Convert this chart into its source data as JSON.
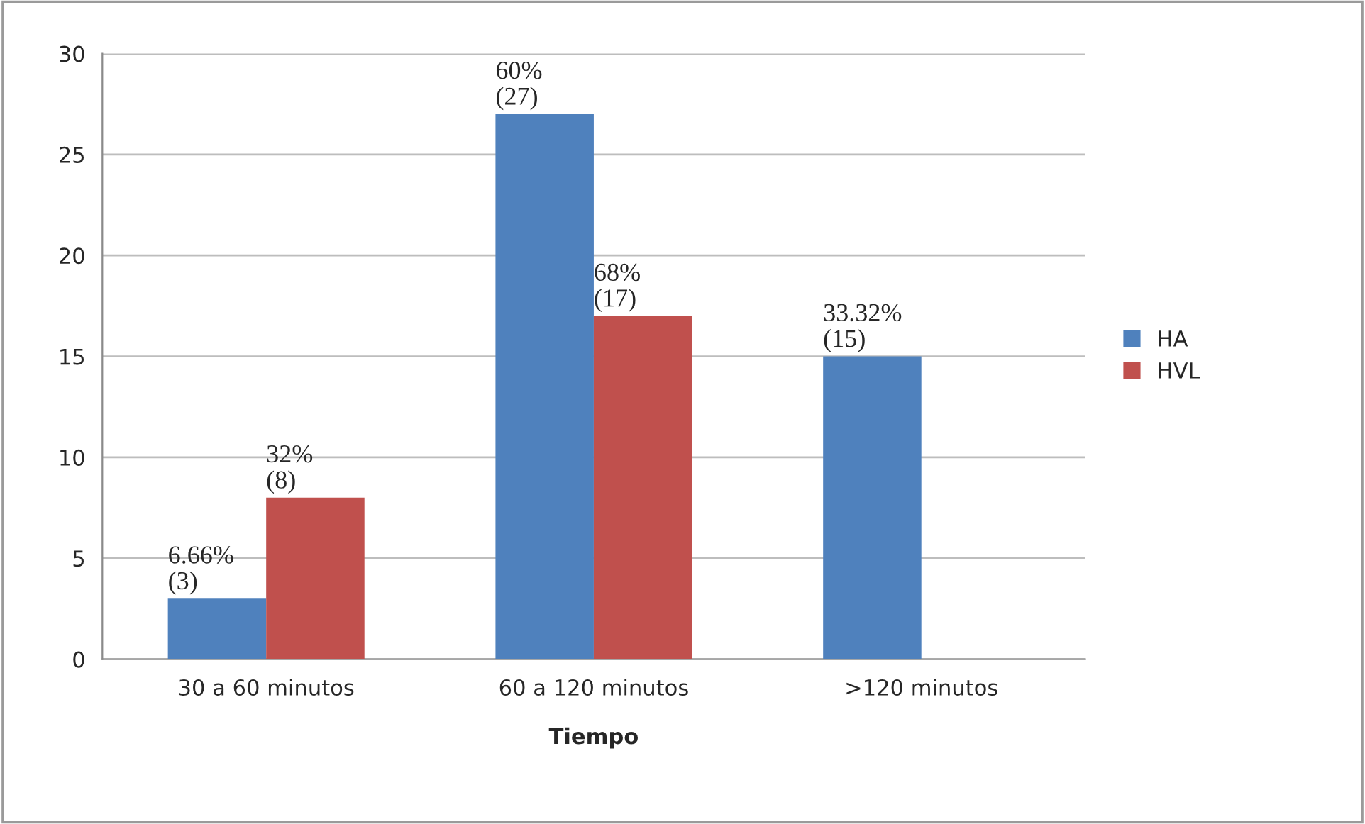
{
  "chart_data": {
    "type": "bar",
    "xlabel": "Tiempo",
    "categories": [
      "30 a 60 minutos",
      "60 a 120 minutos",
      ">120 minutos"
    ],
    "series": [
      {
        "name": "HA",
        "color": "#4f81bd",
        "values": [
          3,
          27,
          15
        ],
        "value_labels": [
          "6.66%\n(3)",
          "60%\n(27)",
          "33.32%\n(15)"
        ]
      },
      {
        "name": "HVL",
        "color": "#c0504d",
        "values": [
          8,
          17,
          null
        ],
        "value_labels": [
          "32%\n(8)",
          "68%\n(17)",
          null
        ]
      }
    ],
    "ylim": [
      0,
      30
    ],
    "yticks": [
      0,
      5,
      10,
      15,
      20,
      25,
      30
    ],
    "grid": "y",
    "legend": "right"
  }
}
